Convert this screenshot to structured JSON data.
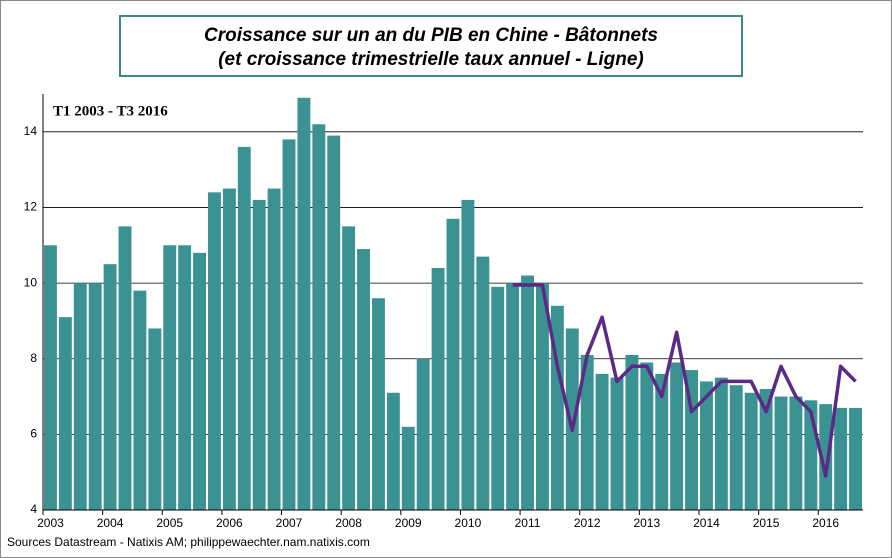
{
  "chart_data": {
    "type": "bar",
    "title": "Croissance sur un an du PIB en Chine - Bâtonnets",
    "subtitle": "(et croissance trimestrielle taux annuel - Ligne)",
    "annotation": "T1 2003 - T3 2016",
    "source": "Sources Datastream - Natixis AM; philippewaechter.nam.natixis.com",
    "categories": [
      "2003",
      null,
      null,
      null,
      "2004",
      null,
      null,
      null,
      "2005",
      null,
      null,
      null,
      "2006",
      null,
      null,
      null,
      "2007",
      null,
      null,
      null,
      "2008",
      null,
      null,
      null,
      "2009",
      null,
      null,
      null,
      "2010",
      null,
      null,
      null,
      "2011",
      null,
      null,
      null,
      "2012",
      null,
      null,
      null,
      "2013",
      null,
      null,
      null,
      "2014",
      null,
      null,
      null,
      "2015",
      null,
      null,
      null,
      "2016",
      null,
      null
    ],
    "series": [
      {
        "type": "bar",
        "color": "#3b9293",
        "values": [
          11.0,
          9.1,
          10.0,
          10.0,
          10.5,
          11.5,
          9.8,
          8.8,
          11.0,
          11.0,
          10.8,
          12.4,
          12.5,
          13.6,
          12.2,
          12.5,
          13.8,
          14.9,
          14.2,
          13.9,
          11.5,
          10.9,
          9.6,
          7.1,
          6.2,
          8.0,
          10.4,
          11.7,
          12.2,
          10.7,
          9.9,
          10.0,
          10.2,
          10.0,
          9.4,
          8.8,
          8.1,
          7.6,
          7.5,
          8.1,
          7.9,
          7.6,
          7.9,
          7.7,
          7.4,
          7.5,
          7.3,
          7.1,
          7.2,
          7.0,
          7.0,
          6.9,
          6.8,
          6.7,
          6.7
        ]
      },
      {
        "type": "line",
        "color": "#5b2a86",
        "values": [
          null,
          null,
          null,
          null,
          null,
          null,
          null,
          null,
          null,
          null,
          null,
          null,
          null,
          null,
          null,
          null,
          null,
          null,
          null,
          null,
          null,
          null,
          null,
          null,
          null,
          null,
          null,
          null,
          null,
          null,
          null,
          9.95,
          9.95,
          9.95,
          7.8,
          6.1,
          8.1,
          9.1,
          7.4,
          7.8,
          7.8,
          7.0,
          8.7,
          6.6,
          7.0,
          7.4,
          7.4,
          7.4,
          6.6,
          7.8,
          7.0,
          6.6,
          4.9,
          7.8,
          7.4
        ]
      }
    ],
    "ylim": [
      4,
      15
    ],
    "yticks": [
      4,
      6,
      8,
      10,
      12,
      14
    ],
    "grid": true
  }
}
